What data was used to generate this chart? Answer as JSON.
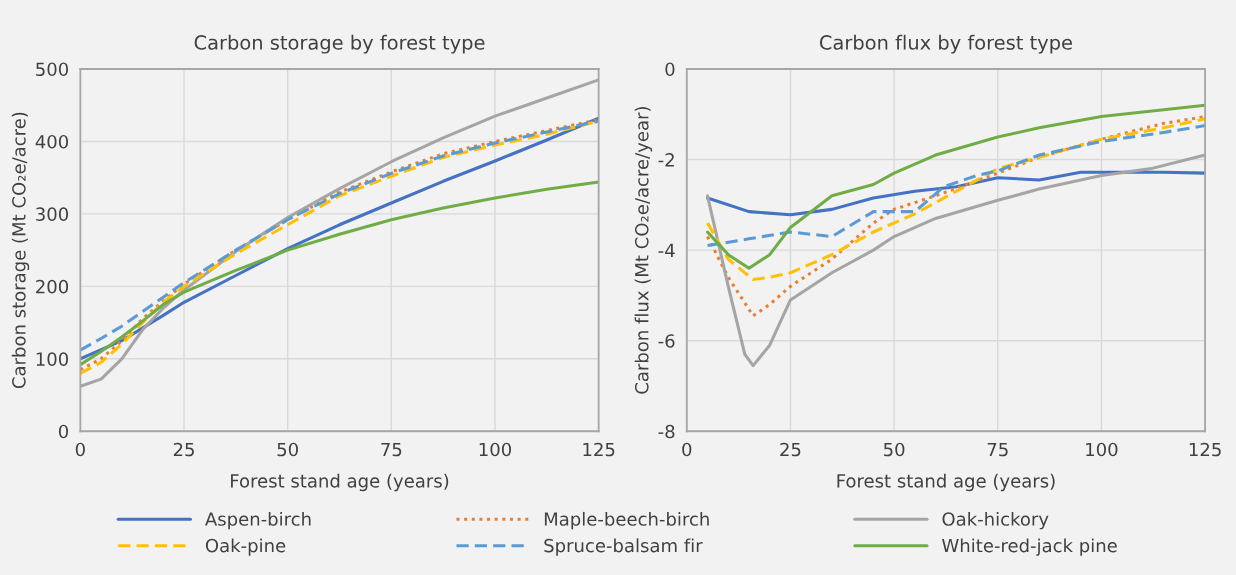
{
  "chart_data": [
    {
      "type": "line",
      "title": "Carbon storage by forest type",
      "xlabel": "Forest stand age (years)",
      "ylabel": "Carbon storage (Mt CO₂e/acre)",
      "xlim": [
        0,
        125
      ],
      "xticks": [
        0,
        25,
        50,
        75,
        100,
        125
      ],
      "ylim": [
        0,
        500
      ],
      "yticks": [
        0,
        100,
        200,
        300,
        400,
        500
      ],
      "grid": true,
      "legend": "bottom",
      "series": [
        {
          "name": "Aspen-birch",
          "color": "#4472c4",
          "line_style": "solid",
          "x": [
            0,
            10,
            20,
            25,
            37.5,
            50,
            62.5,
            75,
            87.5,
            100,
            112.5,
            125
          ],
          "values": [
            100,
            125,
            160,
            178,
            215,
            252,
            285,
            315,
            345,
            373,
            402,
            432
          ]
        },
        {
          "name": "Maple-beech-birch",
          "color": "#ed7d31",
          "line_style": "dotted",
          "x": [
            0,
            5,
            10,
            15,
            20,
            25,
            37.5,
            50,
            62.5,
            75,
            87.5,
            100,
            112.5,
            125
          ],
          "values": [
            85,
            100,
            125,
            155,
            180,
            203,
            250,
            292,
            330,
            358,
            383,
            400,
            415,
            430
          ]
        },
        {
          "name": "Oak-hickory",
          "color": "#a5a5a5",
          "line_style": "solid",
          "x": [
            0,
            5,
            10,
            15,
            20,
            25,
            37.5,
            50,
            62.5,
            75,
            87.5,
            100,
            112.5,
            125
          ],
          "values": [
            62,
            72,
            100,
            140,
            170,
            195,
            248,
            295,
            335,
            372,
            405,
            435,
            460,
            485
          ]
        },
        {
          "name": "Oak-pine",
          "color": "#ffc000",
          "line_style": "dashed",
          "x": [
            0,
            5,
            10,
            15,
            20,
            25,
            37.5,
            50,
            62.5,
            75,
            87.5,
            100,
            112.5,
            125
          ],
          "values": [
            80,
            95,
            120,
            150,
            178,
            200,
            245,
            285,
            325,
            352,
            378,
            395,
            410,
            428
          ]
        },
        {
          "name": "Spruce-balsam fir",
          "color": "#5b9bd5",
          "line_style": "dashed",
          "x": [
            0,
            5,
            10,
            15,
            20,
            25,
            37.5,
            50,
            62.5,
            75,
            87.5,
            100,
            112.5,
            125
          ],
          "values": [
            112,
            128,
            145,
            165,
            185,
            205,
            250,
            292,
            328,
            356,
            380,
            398,
            413,
            428
          ]
        },
        {
          "name": "White-red-jack pine",
          "color": "#70ad47",
          "line_style": "solid",
          "x": [
            0,
            5,
            10,
            15,
            20,
            25,
            37.5,
            50,
            62.5,
            75,
            87.5,
            100,
            112.5,
            125
          ],
          "values": [
            92,
            110,
            130,
            152,
            175,
            192,
            222,
            250,
            272,
            292,
            308,
            322,
            334,
            344
          ]
        }
      ]
    },
    {
      "type": "line",
      "title": "Carbon flux by forest type",
      "xlabel": "Forest stand age (years)",
      "ylabel": "Carbon flux (Mt CO₂e/acre/year)",
      "xlim": [
        0,
        125
      ],
      "xticks": [
        0,
        25,
        50,
        75,
        100,
        125
      ],
      "ylim": [
        -8,
        0
      ],
      "yticks": [
        -8,
        -6,
        -4,
        -2,
        0
      ],
      "grid": true,
      "series": [
        {
          "color": "#4472c4",
          "line_style": "solid",
          "x": [
            5,
            15,
            25,
            35,
            45,
            55,
            65,
            75,
            85,
            95,
            105,
            115,
            125
          ],
          "values": [
            -2.85,
            -3.15,
            -3.22,
            -3.1,
            -2.85,
            -2.7,
            -2.6,
            -2.4,
            -2.45,
            -2.28,
            -2.28,
            -2.28,
            -2.3
          ]
        },
        {
          "color": "#ed7d31",
          "line_style": "dotted",
          "x": [
            5,
            10,
            16,
            20,
            25,
            35,
            45,
            50,
            60,
            75,
            85,
            100,
            115,
            125
          ],
          "values": [
            -3.7,
            -4.6,
            -5.45,
            -5.2,
            -4.8,
            -4.2,
            -3.4,
            -3.1,
            -2.8,
            -2.3,
            -1.95,
            -1.55,
            -1.2,
            -1.05
          ]
        },
        {
          "color": "#a5a5a5",
          "line_style": "solid",
          "x": [
            5,
            10,
            14,
            16,
            20,
            25,
            35,
            45,
            50,
            60,
            75,
            85,
            100,
            112,
            125
          ],
          "values": [
            -2.8,
            -4.8,
            -6.3,
            -6.55,
            -6.1,
            -5.1,
            -4.5,
            -4.0,
            -3.7,
            -3.3,
            -2.9,
            -2.65,
            -2.35,
            -2.2,
            -1.9
          ]
        },
        {
          "color": "#ffc000",
          "line_style": "dashed",
          "x": [
            5,
            10,
            16,
            20,
            25,
            35,
            45,
            55,
            65,
            75,
            85,
            100,
            115,
            125
          ],
          "values": [
            -3.4,
            -4.2,
            -4.65,
            -4.6,
            -4.5,
            -4.1,
            -3.6,
            -3.2,
            -2.7,
            -2.2,
            -1.95,
            -1.55,
            -1.3,
            -1.1
          ]
        },
        {
          "color": "#5b9bd5",
          "line_style": "dashed",
          "x": [
            5,
            15,
            25,
            35,
            45,
            55,
            62,
            70,
            75,
            85,
            100,
            115,
            125
          ],
          "values": [
            -3.9,
            -3.75,
            -3.6,
            -3.7,
            -3.15,
            -3.15,
            -2.6,
            -2.35,
            -2.25,
            -1.9,
            -1.6,
            -1.4,
            -1.25
          ]
        },
        {
          "color": "#70ad47",
          "line_style": "solid",
          "x": [
            5,
            10,
            15,
            20,
            25,
            35,
            45,
            50,
            60,
            75,
            85,
            100,
            115,
            125
          ],
          "values": [
            -3.6,
            -4.1,
            -4.4,
            -4.1,
            -3.5,
            -2.8,
            -2.55,
            -2.3,
            -1.9,
            -1.5,
            -1.3,
            -1.05,
            -0.9,
            -0.8
          ]
        }
      ]
    }
  ]
}
